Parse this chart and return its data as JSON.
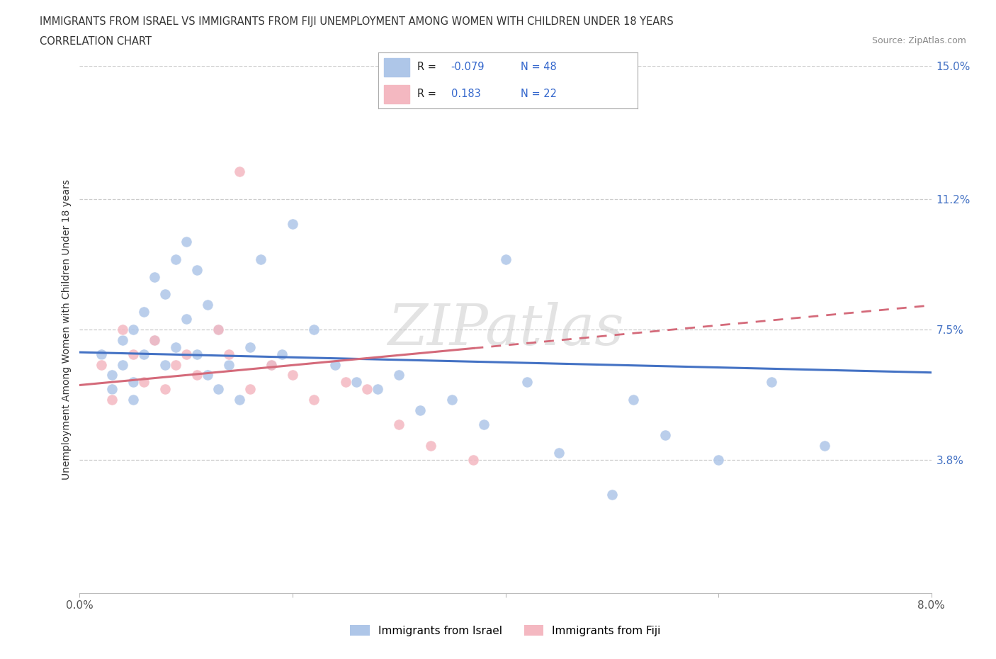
{
  "title_line1": "IMMIGRANTS FROM ISRAEL VS IMMIGRANTS FROM FIJI UNEMPLOYMENT AMONG WOMEN WITH CHILDREN UNDER 18 YEARS",
  "title_line2": "CORRELATION CHART",
  "source_text": "Source: ZipAtlas.com",
  "ylabel": "Unemployment Among Women with Children Under 18 years",
  "xlim": [
    0.0,
    0.08
  ],
  "ylim": [
    0.0,
    0.15
  ],
  "xticks": [
    0.0,
    0.02,
    0.04,
    0.06,
    0.08
  ],
  "xticklabels": [
    "0.0%",
    "",
    "",
    "",
    "8.0%"
  ],
  "ytick_positions": [
    0.038,
    0.075,
    0.112,
    0.15
  ],
  "ytick_labels": [
    "3.8%",
    "7.5%",
    "11.2%",
    "15.0%"
  ],
  "grid_color": "#cccccc",
  "israel_color": "#aec6e8",
  "fiji_color": "#f4b8c1",
  "israel_line_color": "#4472c4",
  "fiji_line_color": "#d46a7a",
  "israel_R": -0.079,
  "israel_N": 48,
  "fiji_R": 0.183,
  "fiji_N": 22,
  "watermark": "ZIPatlas",
  "legend_label_israel": "Immigrants from Israel",
  "legend_label_fiji": "Immigrants from Fiji",
  "israel_scatter_x": [
    0.002,
    0.003,
    0.003,
    0.004,
    0.004,
    0.005,
    0.005,
    0.005,
    0.006,
    0.006,
    0.007,
    0.007,
    0.008,
    0.008,
    0.009,
    0.009,
    0.01,
    0.01,
    0.011,
    0.011,
    0.012,
    0.012,
    0.013,
    0.013,
    0.014,
    0.015,
    0.016,
    0.017,
    0.018,
    0.019,
    0.02,
    0.022,
    0.024,
    0.026,
    0.028,
    0.03,
    0.032,
    0.035,
    0.038,
    0.04,
    0.042,
    0.045,
    0.05,
    0.052,
    0.055,
    0.06,
    0.065,
    0.07
  ],
  "israel_scatter_y": [
    0.068,
    0.062,
    0.058,
    0.072,
    0.065,
    0.075,
    0.06,
    0.055,
    0.08,
    0.068,
    0.09,
    0.072,
    0.085,
    0.065,
    0.095,
    0.07,
    0.1,
    0.078,
    0.092,
    0.068,
    0.082,
    0.062,
    0.075,
    0.058,
    0.065,
    0.055,
    0.07,
    0.095,
    0.065,
    0.068,
    0.105,
    0.075,
    0.065,
    0.06,
    0.058,
    0.062,
    0.052,
    0.055,
    0.048,
    0.095,
    0.06,
    0.04,
    0.028,
    0.055,
    0.045,
    0.038,
    0.06,
    0.042
  ],
  "fiji_scatter_x": [
    0.002,
    0.003,
    0.004,
    0.005,
    0.006,
    0.007,
    0.008,
    0.009,
    0.01,
    0.011,
    0.013,
    0.014,
    0.015,
    0.016,
    0.018,
    0.02,
    0.022,
    0.025,
    0.027,
    0.03,
    0.033,
    0.037
  ],
  "fiji_scatter_y": [
    0.065,
    0.055,
    0.075,
    0.068,
    0.06,
    0.072,
    0.058,
    0.065,
    0.068,
    0.062,
    0.075,
    0.068,
    0.12,
    0.058,
    0.065,
    0.062,
    0.055,
    0.06,
    0.058,
    0.048,
    0.042,
    0.038
  ]
}
